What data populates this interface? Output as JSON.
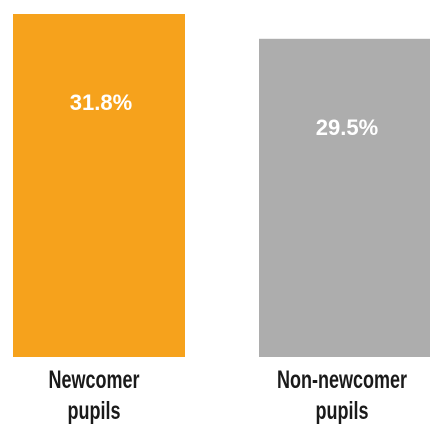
{
  "chart_data": {
    "type": "bar",
    "categories": [
      [
        "Newcomer",
        "pupils"
      ],
      [
        "Non-newcomer",
        "pupils"
      ]
    ],
    "values": [
      31.8,
      29.5
    ],
    "value_labels": [
      "31.8%",
      "29.5%"
    ],
    "colors": [
      "#F6A21C",
      "#ADADAD"
    ],
    "ylim": [
      0,
      31.8
    ],
    "grid": false,
    "title": "",
    "xlabel": "",
    "ylabel": ""
  }
}
